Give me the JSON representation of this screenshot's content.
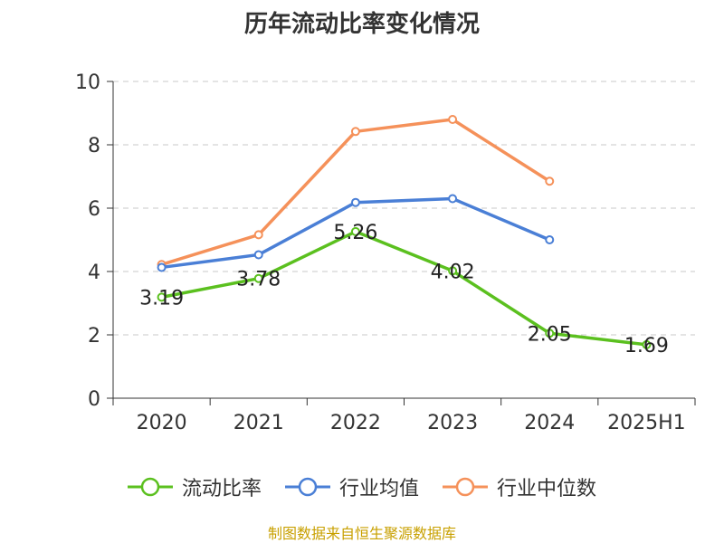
{
  "chart_data": {
    "type": "line",
    "title": "历年流动比率变化情况",
    "categories": [
      "2020",
      "2021",
      "2022",
      "2023",
      "2024",
      "2025H1"
    ],
    "ylim": [
      0,
      10
    ],
    "yticks": [
      0,
      2,
      4,
      6,
      8,
      10
    ],
    "grid": true,
    "legend_position": "bottom",
    "series": [
      {
        "name": "流动比率",
        "color": "#5bc01f",
        "values": [
          3.19,
          3.78,
          5.26,
          4.02,
          2.05,
          1.69
        ],
        "labels": [
          "3.19",
          "3.78",
          "5.26",
          "4.02",
          "2.05",
          "1.69"
        ]
      },
      {
        "name": "行业均值",
        "color": "#4a7fd6",
        "values": [
          4.13,
          4.53,
          6.18,
          6.3,
          5.0,
          null
        ]
      },
      {
        "name": "行业中位数",
        "color": "#f5915a",
        "values": [
          4.22,
          5.16,
          8.42,
          8.8,
          6.85,
          null
        ]
      }
    ]
  },
  "source": "制图数据来自恒生聚源数据库"
}
